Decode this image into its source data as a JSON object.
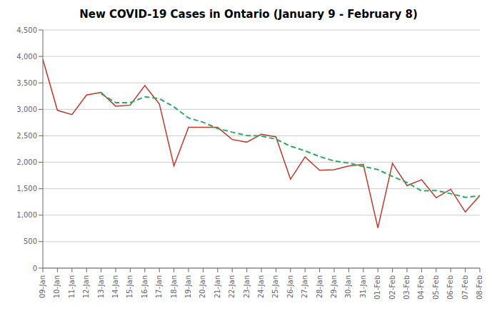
{
  "chart_data": {
    "type": "line",
    "title": "New COVID-19 Cases in Ontario (January 9 - February 8)",
    "categories": [
      "09-Jan",
      "10-Jan",
      "11-Jan",
      "12-Jan",
      "13-Jan",
      "14-Jan",
      "15-Jan",
      "16-Jan",
      "17-Jan",
      "18-Jan",
      "19-Jan",
      "20-Jan",
      "21-Jan",
      "22-Jan",
      "23-Jan",
      "24-Jan",
      "25-Jan",
      "26-Jan",
      "27-Jan",
      "28-Jan",
      "29-Jan",
      "30-Jan",
      "31-Jan",
      "01-Feb",
      "02-Feb",
      "03-Feb",
      "04-Feb",
      "05-Feb",
      "06-Feb",
      "07-Feb",
      "08-Feb"
    ],
    "series": [
      {
        "color": "#c0392b",
        "line_style": "solid",
        "values": [
          3945,
          2980,
          2900,
          3270,
          3320,
          3060,
          3080,
          3450,
          3100,
          1930,
          2660,
          2660,
          2660,
          2430,
          2380,
          2530,
          2480,
          1680,
          2100,
          1850,
          1860,
          1930,
          1960,
          760,
          1980,
          1560,
          1670,
          1330,
          1490,
          1060,
          1370
        ]
      },
      {
        "color": "#27ae60",
        "line_style": "dashed",
        "values": [
          null,
          null,
          null,
          null,
          3295,
          3126,
          3126,
          3237,
          3202,
          3047,
          2837,
          2757,
          2637,
          2568,
          2506,
          2496,
          2436,
          2304,
          2216,
          2108,
          2024,
          1985,
          1921,
          1861,
          1731,
          1617,
          1461,
          1465,
          1406,
          1337,
          1365
        ]
      }
    ],
    "ylim": [
      0,
      4500
    ],
    "yticks": [
      0,
      500,
      {
        "value": 1000,
        "label": "1,000"
      },
      {
        "value": 1500,
        "label": "1,500"
      },
      {
        "value": 2000,
        "label": "2,000"
      },
      {
        "value": 2500,
        "label": "2,500"
      },
      {
        "value": 3000,
        "label": "3,000"
      },
      {
        "value": 3500,
        "label": "3,500"
      },
      {
        "value": 4000,
        "label": "4,000"
      },
      {
        "value": 4500,
        "label": "4,500"
      }
    ],
    "grid": "y"
  }
}
